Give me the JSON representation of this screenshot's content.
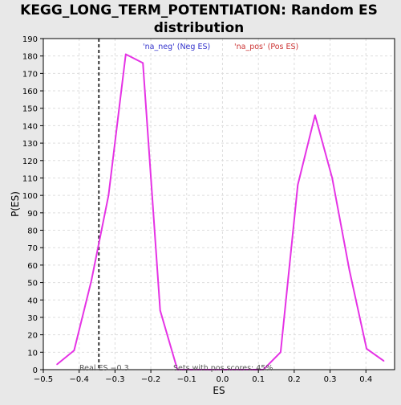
{
  "colors": {
    "background": "#e8e8e8",
    "plot_background": "#ffffff",
    "curve": "#e533e5",
    "grid": "#dddddd",
    "real_es_line": "#333333",
    "neg_label": "#3333cc",
    "pos_label": "#cc3333"
  },
  "chart_data": {
    "type": "line",
    "title_line1": "KEGG_LONG_TERM_POTENTIATION: Random ES",
    "title_line2": "distribution",
    "xlabel": "ES",
    "ylabel": "P(ES)",
    "xlim": [
      -0.5,
      0.48
    ],
    "ylim": [
      0,
      190
    ],
    "x_ticks": [
      -0.5,
      -0.4,
      -0.3,
      -0.2,
      -0.1,
      0.0,
      0.1,
      0.2,
      0.3,
      0.4
    ],
    "x_tick_labels": [
      "−0.5",
      "−0.4",
      "−0.3",
      "−0.2",
      "−0.1",
      "0.0",
      "0.1",
      "0.2",
      "0.3",
      "0.4"
    ],
    "y_ticks": [
      0,
      10,
      20,
      30,
      40,
      50,
      60,
      70,
      80,
      90,
      100,
      110,
      120,
      130,
      140,
      150,
      160,
      170,
      180,
      190
    ],
    "grid": true,
    "series": [
      {
        "x": [
          -0.462,
          -0.414,
          -0.366,
          -0.318,
          -0.27,
          -0.222,
          -0.174,
          -0.126,
          -0.078,
          -0.03,
          0.018,
          0.066,
          0.114,
          0.162,
          0.21,
          0.258,
          0.306,
          0.354,
          0.402,
          0.45
        ],
        "y": [
          3,
          11,
          51,
          100,
          181,
          176,
          34,
          0,
          0,
          0,
          0,
          0,
          0,
          10,
          106,
          146,
          110,
          57,
          12,
          5
        ]
      }
    ],
    "real_es": -0.345,
    "annotations": {
      "neg_label": "'na_neg' (Neg ES)",
      "pos_label": "'na_pos' (Pos ES)",
      "real_es_label": "Real ES −0.3",
      "pos_scores_label": "Sets with pos scores: 45%"
    }
  }
}
